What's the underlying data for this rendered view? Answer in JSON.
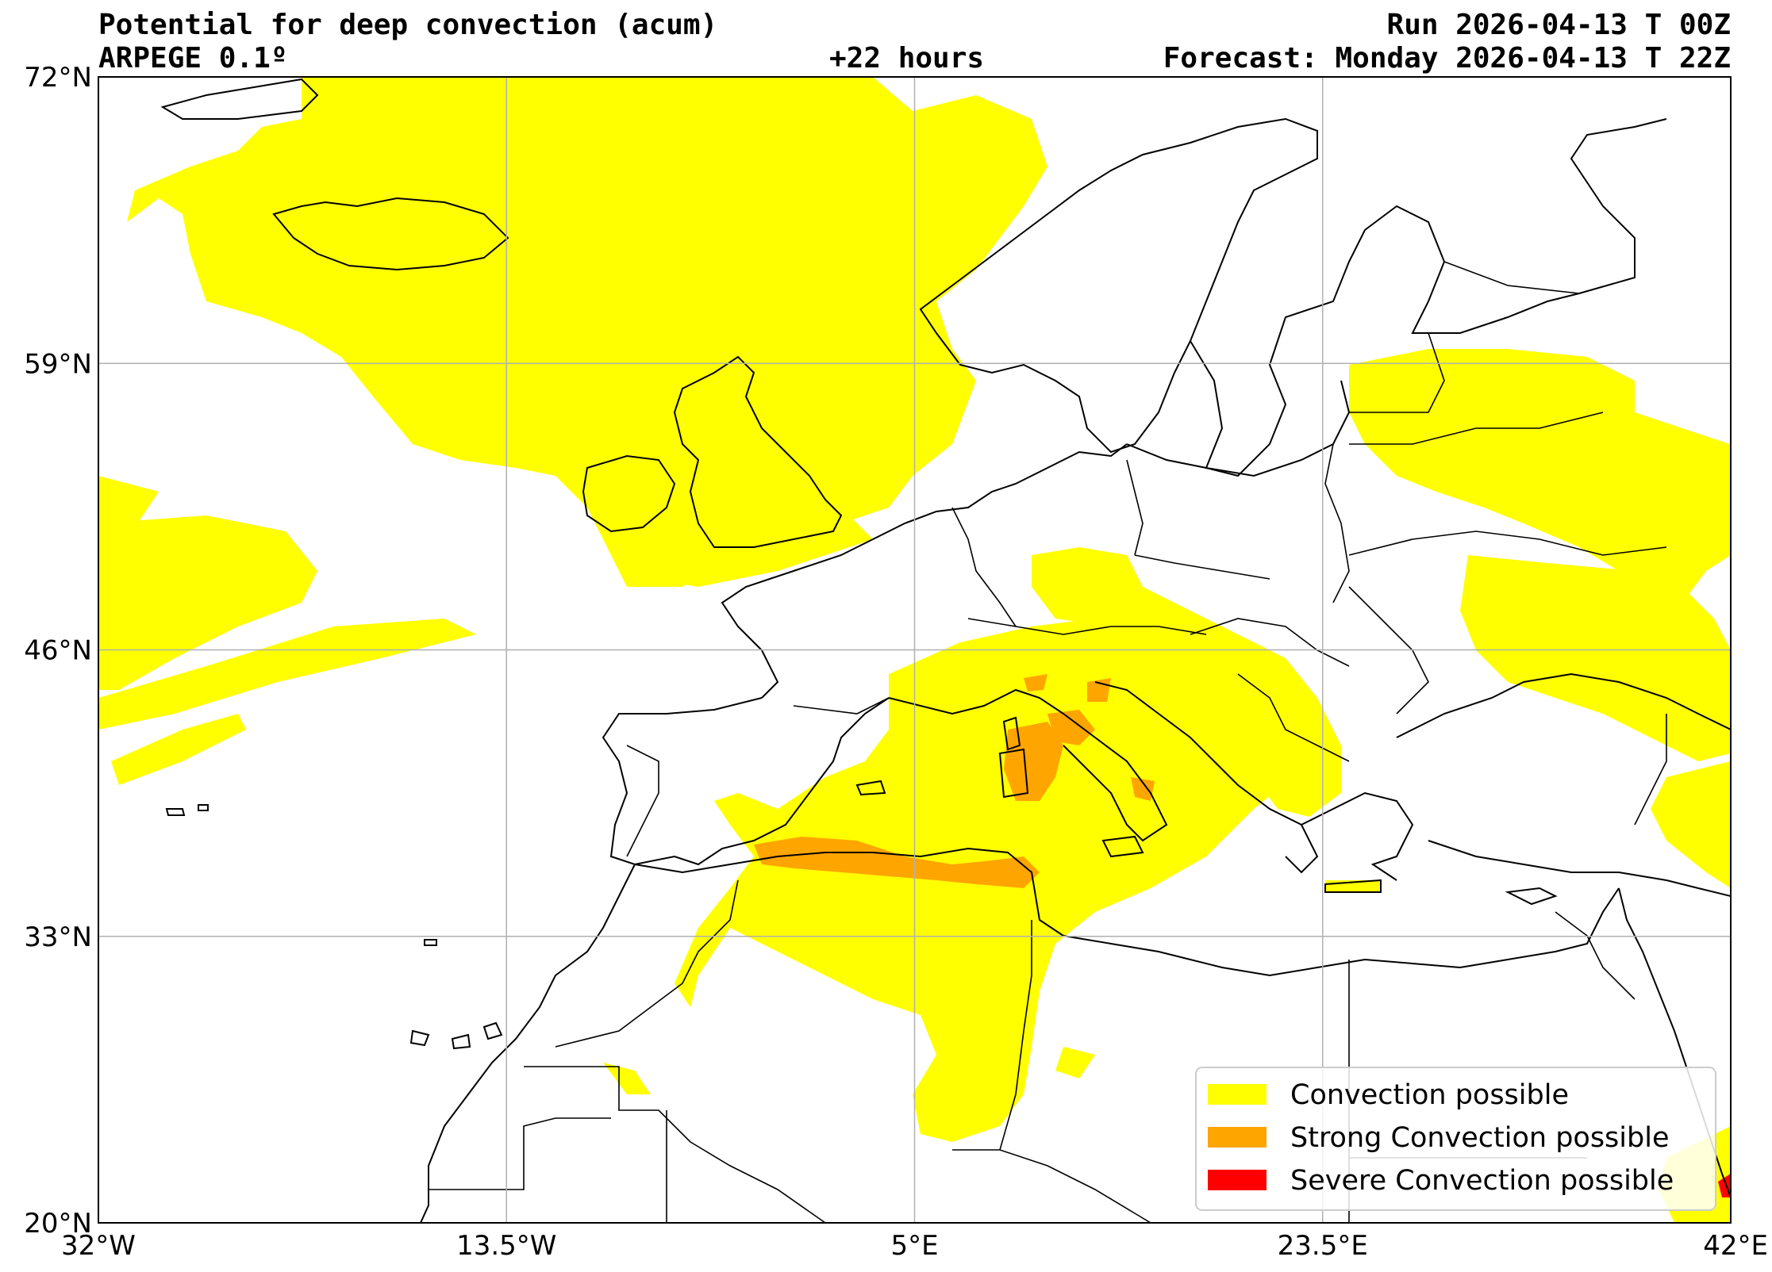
{
  "header": {
    "title": "Potential for deep convection (acum)",
    "model": "ARPEGE 0.1º",
    "run": "Run 2026-04-13 T 00Z",
    "lead": "+22 hours",
    "forecast": "Forecast: Monday 2026-04-13 T 22Z"
  },
  "axes": {
    "lat_labels": [
      "72°N",
      "59°N",
      "46°N",
      "33°N",
      "20°N"
    ],
    "lon_labels": [
      "32°W",
      "13.5°W",
      "5°E",
      "23.5°E",
      "42°E"
    ],
    "lat_values": [
      72,
      59,
      46,
      33,
      20
    ],
    "lon_values": [
      -32,
      -13.5,
      5,
      23.5,
      42
    ],
    "lon_range": [
      -32,
      42
    ],
    "lat_range": [
      20,
      72
    ],
    "grid": true
  },
  "legend": {
    "placement": "lower-right",
    "items": [
      {
        "label": "Convection possible",
        "color": "#ffff00"
      },
      {
        "label": "Strong Convection possible",
        "color": "#ffa500"
      },
      {
        "label": "Severe Convection possible",
        "color": "#ff0000"
      }
    ]
  },
  "colors": {
    "convection": "#ffff00",
    "strong": "#ffa500",
    "severe": "#ff0000",
    "coastline": "#000000",
    "grid": "#b0b0b0"
  }
}
